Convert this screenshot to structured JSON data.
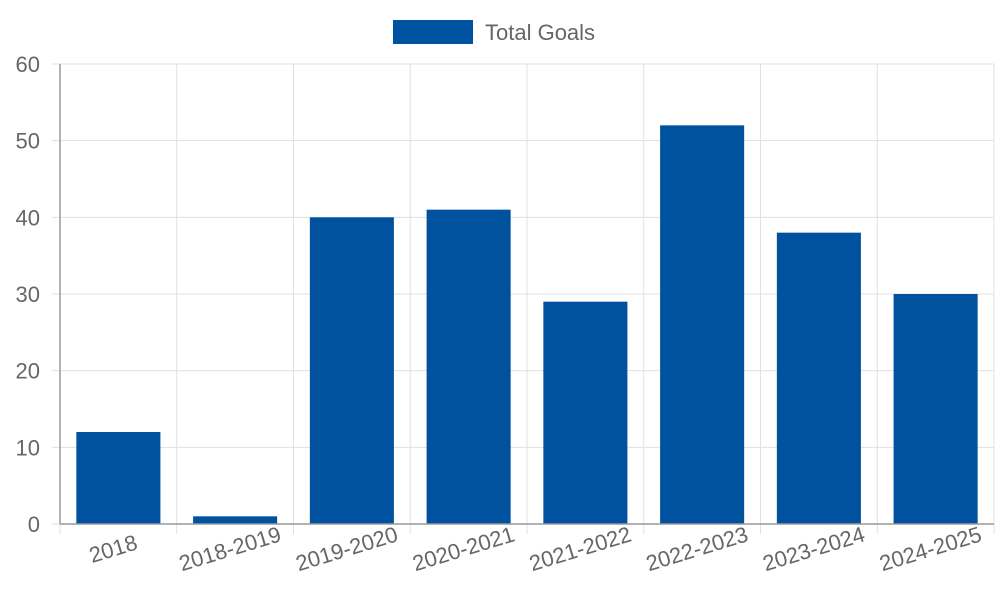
{
  "chart_data": {
    "type": "bar",
    "categories": [
      "2018",
      "2018-2019",
      "2019-2020",
      "2020-2021",
      "2021-2022",
      "2022-2023",
      "2023-2024",
      "2024-2025"
    ],
    "series": [
      {
        "name": "Total Goals",
        "values": [
          12,
          1,
          40,
          41,
          29,
          52,
          38,
          30
        ]
      }
    ],
    "y_ticks": [
      "0",
      "10",
      "20",
      "30",
      "40",
      "50",
      "60"
    ],
    "ylim": [
      0,
      60
    ],
    "grid": true,
    "legend_position": "top",
    "colors": {
      "bar": "#00529f",
      "grid": "#e0e0e0",
      "axis": "#999999",
      "text": "#666666"
    }
  }
}
